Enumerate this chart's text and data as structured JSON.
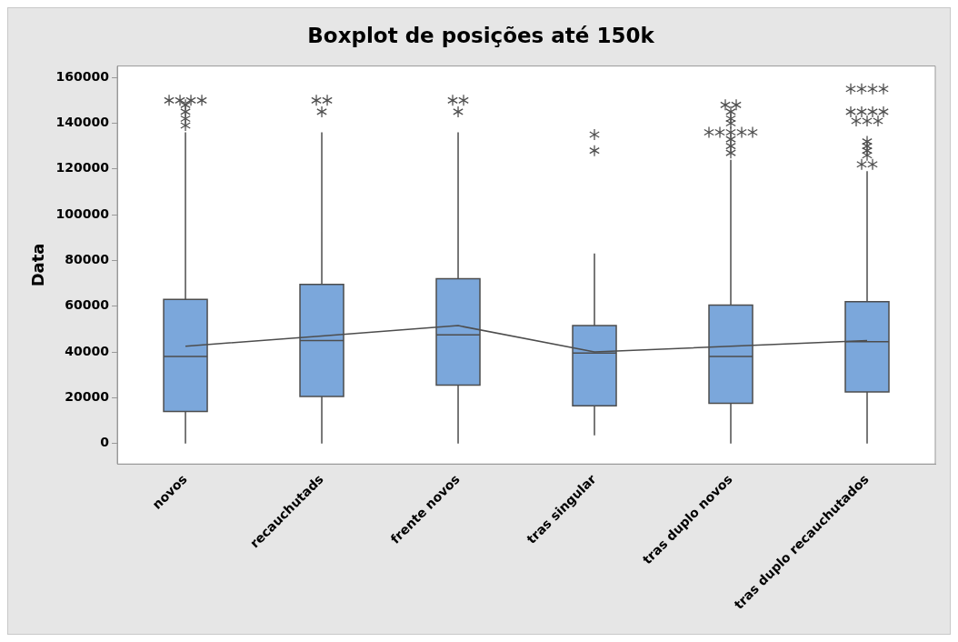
{
  "chart_data": {
    "type": "box",
    "title": "Boxplot de posições até 150k",
    "ylabel": "Data",
    "categories": [
      "novos",
      "recauchutads",
      "frente novos",
      "tras singular",
      "tras duplo novos",
      "tras duplo recauchutados"
    ],
    "ylim": [
      -9000,
      165000
    ],
    "yticks": [
      0,
      20000,
      40000,
      60000,
      80000,
      100000,
      120000,
      140000,
      160000
    ],
    "grid": false,
    "legend": false,
    "marker": "star",
    "series": [
      {
        "color": "#7ba7db",
        "boxes": [
          {
            "low": 0,
            "q1": 14000,
            "median": 38000,
            "q3": 63000,
            "high": 136000,
            "outliers": [
              150000,
              150000,
              150000,
              150000,
              148000,
              145000,
              142000,
              139000
            ]
          },
          {
            "low": 0,
            "q1": 20500,
            "median": 45000,
            "q3": 69500,
            "high": 136000,
            "outliers": [
              150000,
              150000,
              145000
            ]
          },
          {
            "low": 0,
            "q1": 25500,
            "median": 47500,
            "q3": 72000,
            "high": 136000,
            "outliers": [
              150000,
              150000,
              145000
            ]
          },
          {
            "low": 3500,
            "q1": 16500,
            "median": 39500,
            "q3": 51500,
            "high": 83000,
            "outliers": [
              135000,
              128000
            ]
          },
          {
            "low": 0,
            "q1": 17500,
            "median": 38000,
            "q3": 60500,
            "high": 124000,
            "outliers": [
              148000,
              148000,
              145000,
              142000,
              140000,
              136000,
              136000,
              136000,
              136000,
              136000,
              133000,
              130000,
              127000
            ]
          },
          {
            "low": 0,
            "q1": 22500,
            "median": 44500,
            "q3": 62000,
            "high": 119000,
            "outliers": [
              155000,
              155000,
              155000,
              155000,
              145000,
              145000,
              145000,
              145000,
              141000,
              141000,
              141000,
              132000,
              130000,
              128000,
              126000,
              122000,
              122000
            ]
          }
        ]
      },
      {
        "type": "line",
        "color": "#4d4d4d",
        "marker": "none",
        "values": [
          42500,
          47000,
          51500,
          40000,
          42500,
          45000
        ]
      }
    ]
  }
}
